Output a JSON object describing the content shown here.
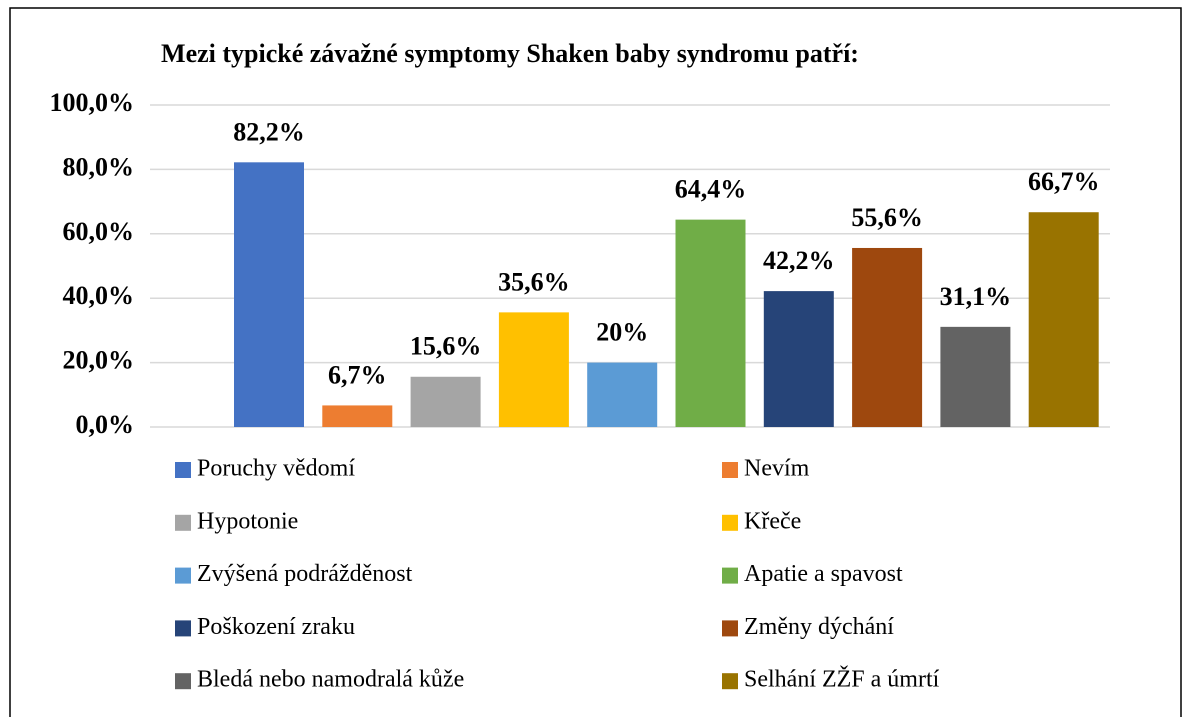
{
  "chart_data": {
    "type": "bar",
    "title": "Mezi typické závažné symptomy Shaken baby syndromu patří:",
    "series": [
      {
        "name": "Poruchy vědomí",
        "color": "#4472c4",
        "values": [
          82.2
        ],
        "value_labels": [
          "82,2%"
        ]
      },
      {
        "name": "Nevím",
        "color": "#ed7d31",
        "values": [
          6.7
        ],
        "value_labels": [
          "6,7%"
        ]
      },
      {
        "name": "Hypotonie",
        "color": "#a5a5a5",
        "values": [
          15.6
        ],
        "value_labels": [
          "15,6%"
        ]
      },
      {
        "name": "Křeče",
        "color": "#ffc000",
        "values": [
          35.6
        ],
        "value_labels": [
          "35,6%"
        ]
      },
      {
        "name": "Zvýšená podrážděnost",
        "color": "#5b9bd5",
        "values": [
          20
        ],
        "value_labels": [
          "20%"
        ]
      },
      {
        "name": "Apatie a spavost",
        "color": "#70ad47",
        "values": [
          64.4
        ],
        "value_labels": [
          "64,4%"
        ]
      },
      {
        "name": "Poškození zraku",
        "color": "#264478",
        "values": [
          42.2
        ],
        "value_labels": [
          "42,2%"
        ]
      },
      {
        "name": "Změny dýchání",
        "color": "#9e480e",
        "values": [
          55.6
        ],
        "value_labels": [
          "55,6%"
        ]
      },
      {
        "name": "Bledá nebo namodralá kůže",
        "color": "#636363",
        "values": [
          31.1
        ],
        "value_labels": [
          "31,1%"
        ]
      },
      {
        "name": "Selhání ZŽF a úmrtí",
        "color": "#997300",
        "values": [
          66.7
        ],
        "value_labels": [
          "66,7%"
        ]
      }
    ],
    "ylim": [
      0,
      100
    ],
    "yticks": [
      {
        "value": 0,
        "label": "0,0%"
      },
      {
        "value": 20,
        "label": "20,0%"
      },
      {
        "value": 40,
        "label": "40,0%"
      },
      {
        "value": 60,
        "label": "60,0%"
      },
      {
        "value": 80,
        "label": "80,0%"
      },
      {
        "value": 100,
        "label": "100,0%"
      }
    ],
    "grid": true,
    "legend": "bottom"
  }
}
